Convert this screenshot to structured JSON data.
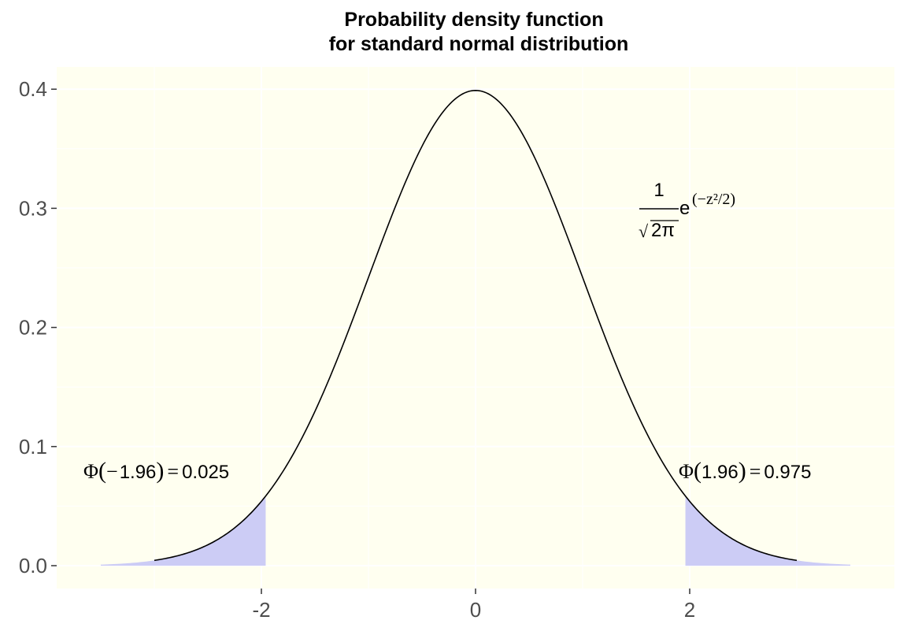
{
  "chart_data": {
    "type": "area",
    "title": [
      "Probability density function",
      "for standard normal distribution"
    ],
    "xlabel": "",
    "ylabel": "",
    "xlim": [
      -3.5,
      3.5
    ],
    "ylim": [
      0,
      0.4
    ],
    "x_ticks": [
      "-2",
      "0",
      "2"
    ],
    "y_ticks": [
      "0.0",
      "0.1",
      "0.2",
      "0.3",
      "0.4"
    ],
    "grid": true,
    "background": "#fffff0",
    "series": [
      {
        "type": "line",
        "function": "standard normal density",
        "x_range": [
          -3,
          3
        ],
        "color": "#000000"
      },
      {
        "type": "area",
        "x_range": [
          -3.5,
          -1.96
        ],
        "color": "#ccccf5"
      },
      {
        "type": "area",
        "x_range": [
          1.96,
          3.5
        ],
        "color": "#ccccf5"
      }
    ],
    "annotations": {
      "left_tail": {
        "phi": "Φ",
        "arg_sign": "−",
        "arg": "1.96",
        "equals": "=",
        "value": "0.025"
      },
      "right_tail": {
        "phi": "Φ",
        "arg": "1.96",
        "equals": "=",
        "value": "0.975"
      },
      "formula": {
        "numerator": "1",
        "root_sign": "√",
        "root_arg": "2π",
        "base": "e",
        "exponent": "(−z²/2)"
      }
    }
  }
}
